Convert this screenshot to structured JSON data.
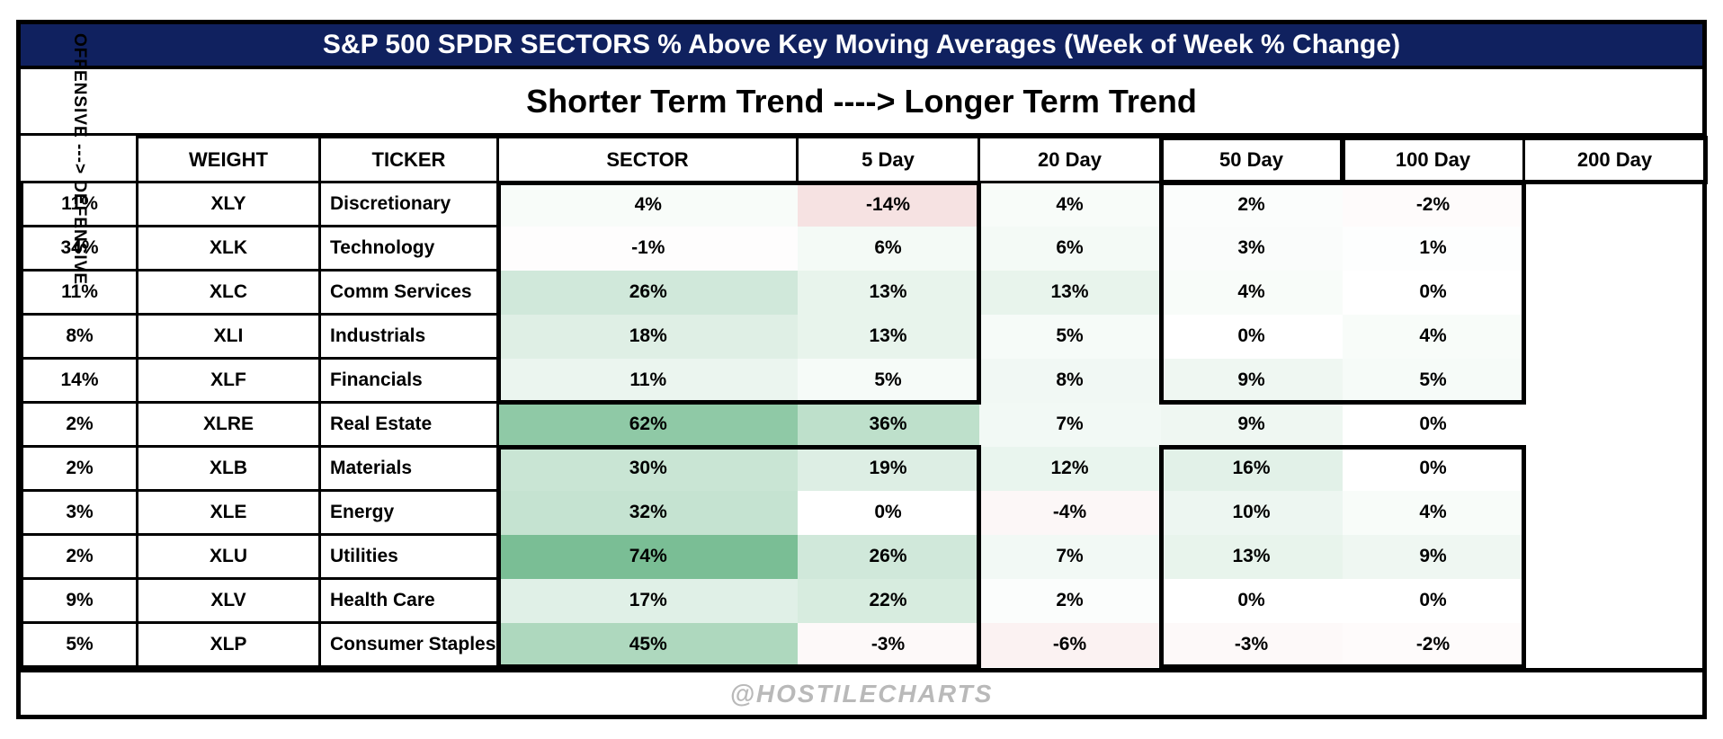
{
  "chart_data": {
    "type": "heatmap",
    "title": "S&P 500 SPDR SECTORS % Above Key Moving Averages (Week of Week % Change)",
    "subtitle": "Shorter Term Trend ----> Longer Term Trend",
    "row_axis_label": "OFFENSIVE ---> DEFENSIVE",
    "columns": [
      "WEIGHT",
      "TICKER",
      "SECTOR",
      "5 Day",
      "20 Day",
      "50 Day",
      "100 Day",
      "200 Day"
    ],
    "value_columns": [
      "5 Day",
      "20 Day",
      "50 Day",
      "100 Day",
      "200 Day"
    ],
    "rows": [
      {
        "weight": "11%",
        "ticker": "XLY",
        "sector": "Discretionary",
        "values": [
          "4%",
          "-14%",
          "4%",
          "2%",
          "-2%"
        ]
      },
      {
        "weight": "34%",
        "ticker": "XLK",
        "sector": "Technology",
        "values": [
          "-1%",
          "6%",
          "6%",
          "3%",
          "1%"
        ]
      },
      {
        "weight": "11%",
        "ticker": "XLC",
        "sector": "Comm Services",
        "values": [
          "26%",
          "13%",
          "13%",
          "4%",
          "0%"
        ]
      },
      {
        "weight": "8%",
        "ticker": "XLI",
        "sector": "Industrials",
        "values": [
          "18%",
          "13%",
          "5%",
          "0%",
          "4%"
        ]
      },
      {
        "weight": "14%",
        "ticker": "XLF",
        "sector": "Financials",
        "values": [
          "11%",
          "5%",
          "8%",
          "9%",
          "5%"
        ]
      },
      {
        "weight": "2%",
        "ticker": "XLRE",
        "sector": "Real Estate",
        "values": [
          "62%",
          "36%",
          "7%",
          "9%",
          "0%"
        ]
      },
      {
        "weight": "2%",
        "ticker": "XLB",
        "sector": "Materials",
        "values": [
          "30%",
          "19%",
          "12%",
          "16%",
          "0%"
        ]
      },
      {
        "weight": "3%",
        "ticker": "XLE",
        "sector": "Energy",
        "values": [
          "32%",
          "0%",
          "-4%",
          "10%",
          "4%"
        ]
      },
      {
        "weight": "2%",
        "ticker": "XLU",
        "sector": "Utilities",
        "values": [
          "74%",
          "26%",
          "7%",
          "13%",
          "9%"
        ]
      },
      {
        "weight": "9%",
        "ticker": "XLV",
        "sector": "Health Care",
        "values": [
          "17%",
          "22%",
          "2%",
          "0%",
          "0%"
        ]
      },
      {
        "weight": "5%",
        "ticker": "XLP",
        "sector": "Consumer Staples",
        "values": [
          "45%",
          "-3%",
          "-6%",
          "-3%",
          "-2%"
        ]
      }
    ],
    "watermark": "@HOSTILECHARTS",
    "layout_hints": {
      "grid": "thin black cell borders on label columns; heat cells borderless",
      "group_boxes": "thick black boxes around short-term (5/20 Day) and long-term (100/200 Day) blocks for offensive and defensive sector groups, and around the 50 Day header"
    },
    "colorscale": {
      "zero": "#ffffff",
      "positive_full": "#6fb98c",
      "positive_domain": [
        0,
        80
      ],
      "negative_full": "#f2d5d5",
      "negative_domain": [
        0,
        -20
      ]
    },
    "colors": {
      "title_bg": "#10215f",
      "title_text": "#ffffff",
      "border": "#000000",
      "watermark_text": "#b9b9b9"
    }
  }
}
